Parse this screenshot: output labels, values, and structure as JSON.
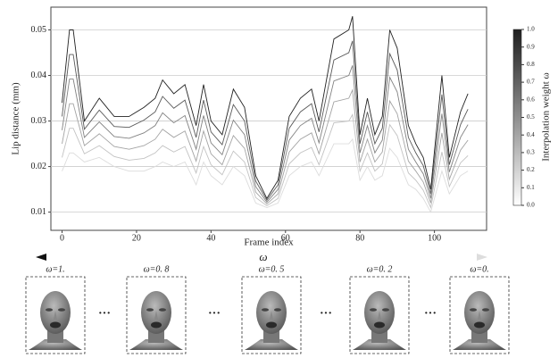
{
  "chart_data": {
    "type": "line",
    "xlabel": "Frame index",
    "ylabel": "Lip distance (mm)",
    "x": [
      0,
      2,
      3,
      6,
      10,
      14,
      18,
      22,
      25,
      27,
      30,
      33,
      36,
      38,
      40,
      43,
      46,
      49,
      52,
      55,
      58,
      61,
      64,
      67,
      69,
      73,
      77,
      78,
      80,
      82,
      84,
      86,
      88,
      90,
      93,
      95,
      97,
      99,
      102,
      104,
      107,
      109
    ],
    "series": [
      {
        "color": "#dcdcdc",
        "values": [
          0.019,
          0.023,
          0.023,
          0.021,
          0.022,
          0.02,
          0.019,
          0.019,
          0.02,
          0.021,
          0.02,
          0.021,
          0.016,
          0.021,
          0.018,
          0.016,
          0.02,
          0.018,
          0.012,
          0.011,
          0.012,
          0.018,
          0.02,
          0.021,
          0.018,
          0.025,
          0.025,
          0.026,
          0.017,
          0.02,
          0.017,
          0.018,
          0.024,
          0.022,
          0.016,
          0.015,
          0.013,
          0.01,
          0.019,
          0.014,
          0.018,
          0.019
        ]
      },
      {
        "color": "#c2c2c2",
        "values": [
          0.022,
          0.0284,
          0.0284,
          0.0228,
          0.0246,
          0.0222,
          0.0214,
          0.0218,
          0.023,
          0.0246,
          0.0232,
          0.0244,
          0.0186,
          0.0244,
          0.0204,
          0.0182,
          0.0234,
          0.021,
          0.0132,
          0.0114,
          0.013,
          0.0206,
          0.023,
          0.0242,
          0.0204,
          0.0296,
          0.03,
          0.0314,
          0.019,
          0.023,
          0.019,
          0.0206,
          0.0292,
          0.0268,
          0.0186,
          0.017,
          0.0148,
          0.011,
          0.0232,
          0.0156,
          0.0208,
          0.0224
        ]
      },
      {
        "color": "#a3a3a3",
        "values": [
          0.025,
          0.0338,
          0.0338,
          0.0246,
          0.0272,
          0.0244,
          0.0238,
          0.0246,
          0.026,
          0.0282,
          0.0264,
          0.0278,
          0.0212,
          0.0278,
          0.0228,
          0.0204,
          0.0268,
          0.024,
          0.0144,
          0.0118,
          0.014,
          0.0232,
          0.026,
          0.0274,
          0.0228,
          0.0342,
          0.035,
          0.0368,
          0.021,
          0.026,
          0.021,
          0.0232,
          0.0344,
          0.0316,
          0.0212,
          0.019,
          0.0166,
          0.012,
          0.0274,
          0.0172,
          0.0236,
          0.0258
        ]
      },
      {
        "color": "#828282",
        "values": [
          0.028,
          0.0392,
          0.0392,
          0.0264,
          0.0298,
          0.0266,
          0.0262,
          0.0274,
          0.029,
          0.0318,
          0.0296,
          0.0312,
          0.0238,
          0.0312,
          0.0252,
          0.0226,
          0.0302,
          0.027,
          0.0156,
          0.0122,
          0.015,
          0.0258,
          0.029,
          0.0306,
          0.0252,
          0.0388,
          0.04,
          0.0422,
          0.023,
          0.029,
          0.023,
          0.0258,
          0.0396,
          0.0364,
          0.0238,
          0.021,
          0.0184,
          0.013,
          0.0316,
          0.0188,
          0.0264,
          0.0292
        ]
      },
      {
        "color": "#595959",
        "values": [
          0.031,
          0.0446,
          0.0446,
          0.0282,
          0.0324,
          0.0288,
          0.0286,
          0.0302,
          0.032,
          0.0354,
          0.0328,
          0.0346,
          0.0264,
          0.0346,
          0.0276,
          0.0248,
          0.0336,
          0.03,
          0.0168,
          0.0126,
          0.016,
          0.0284,
          0.032,
          0.0338,
          0.0276,
          0.0434,
          0.045,
          0.0476,
          0.025,
          0.032,
          0.025,
          0.0284,
          0.0448,
          0.0412,
          0.0264,
          0.023,
          0.0202,
          0.014,
          0.0358,
          0.0204,
          0.0292,
          0.0326
        ]
      },
      {
        "color": "#222222",
        "values": [
          0.034,
          0.05,
          0.05,
          0.03,
          0.035,
          0.031,
          0.031,
          0.033,
          0.035,
          0.039,
          0.036,
          0.038,
          0.029,
          0.038,
          0.03,
          0.027,
          0.037,
          0.033,
          0.018,
          0.013,
          0.017,
          0.031,
          0.035,
          0.037,
          0.03,
          0.048,
          0.05,
          0.053,
          0.027,
          0.035,
          0.027,
          0.031,
          0.05,
          0.046,
          0.029,
          0.025,
          0.022,
          0.015,
          0.04,
          0.022,
          0.032,
          0.036
        ]
      }
    ],
    "xlim": [
      -3,
      114
    ],
    "xticks": [
      0,
      20,
      40,
      60,
      80,
      100
    ],
    "ylim": [
      0.006,
      0.055
    ],
    "yticks": [
      0.01,
      0.02,
      0.03,
      0.04,
      0.05
    ],
    "grid": true,
    "colorbar": {
      "label": "Interpolation weight ω",
      "lim": [
        0,
        1
      ],
      "colors": [
        "#ffffff",
        "#1e1e1e"
      ],
      "ticks": [
        {
          "value": 0,
          "label": "0.0"
        },
        0.1,
        0.2,
        0.3,
        0.4,
        0.5,
        0.6,
        0.7,
        0.8,
        0.9,
        {
          "value": 1,
          "label": "1.0"
        }
      ]
    }
  },
  "strip": {
    "symbol": "ω",
    "panels": [
      "ω=1.",
      "ω=0. 8",
      "ω=0. 5",
      "ω=0. 2",
      "ω=0."
    ]
  }
}
